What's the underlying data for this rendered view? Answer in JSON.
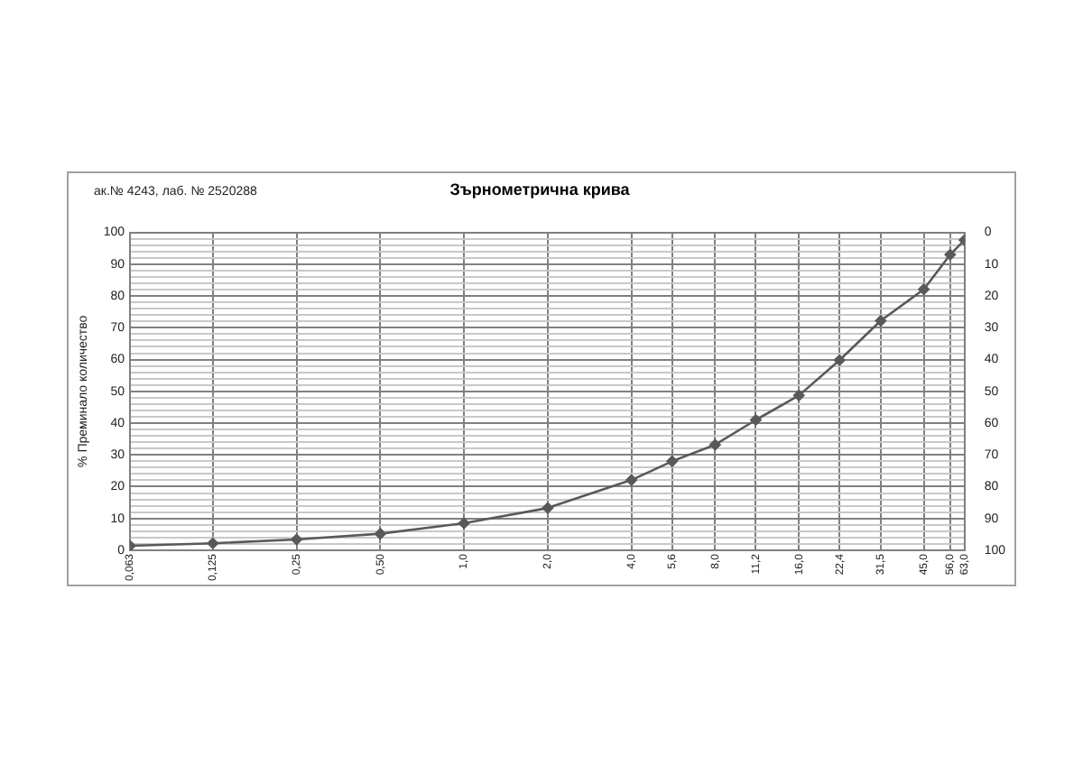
{
  "chart_data": {
    "type": "line",
    "title": "Зърнометрична крива",
    "ylabel": "% Преминало количество",
    "annotations": [
      "ак.№ 4243, лаб. № 2520288"
    ],
    "x": [
      0.063,
      0.125,
      0.25,
      0.5,
      1.0,
      2.0,
      4.0,
      5.6,
      8.0,
      11.2,
      16.0,
      22.4,
      31.5,
      45.0,
      56.0,
      63.0
    ],
    "series": [
      {
        "color": "#595959",
        "values": [
          1.4,
          2.2,
          3.4,
          5.2,
          8.5,
          13.3,
          22.1,
          28,
          33.2,
          41,
          48.7,
          59.8,
          72.2,
          82.1,
          93,
          97.6
        ]
      }
    ],
    "log": "x",
    "xlim": [
      0.063,
      63
    ],
    "xticks": [
      {
        "value": 0.063,
        "label": "0,063"
      },
      {
        "value": 0.125,
        "label": "0,125"
      },
      {
        "value": 0.25,
        "label": "0,25"
      },
      {
        "value": 0.5,
        "label": "0,50"
      },
      {
        "value": 1,
        "label": "1,0"
      },
      {
        "value": 2,
        "label": "2,0"
      },
      {
        "value": 4,
        "label": "4,0"
      },
      {
        "value": 5.6,
        "label": "5,6"
      },
      {
        "value": 8,
        "label": "8,0"
      },
      {
        "value": 11.2,
        "label": "11,2"
      },
      {
        "value": 16,
        "label": "16,0"
      },
      {
        "value": 22.4,
        "label": "22,4"
      },
      {
        "value": 31.5,
        "label": "31,5"
      },
      {
        "value": 45,
        "label": "45,0"
      },
      {
        "value": 56,
        "label": "56,0"
      },
      {
        "value": 63,
        "label": "63,0"
      }
    ],
    "ylim": [
      0,
      100
    ],
    "yticks": [
      0,
      {
        "value": 2,
        "label": null
      },
      {
        "value": 4,
        "label": null
      },
      {
        "value": 6,
        "label": null
      },
      {
        "value": 8,
        "label": null
      },
      10,
      {
        "value": 12,
        "label": null
      },
      {
        "value": 14,
        "label": null
      },
      {
        "value": 16,
        "label": null
      },
      {
        "value": 18,
        "label": null
      },
      20,
      {
        "value": 22,
        "label": null
      },
      {
        "value": 24,
        "label": null
      },
      {
        "value": 26,
        "label": null
      },
      {
        "value": 28,
        "label": null
      },
      30,
      {
        "value": 32,
        "label": null
      },
      {
        "value": 34,
        "label": null
      },
      {
        "value": 36,
        "label": null
      },
      {
        "value": 38,
        "label": null
      },
      40,
      {
        "value": 42,
        "label": null
      },
      {
        "value": 44,
        "label": null
      },
      {
        "value": 46,
        "label": null
      },
      {
        "value": 48,
        "label": null
      },
      50,
      {
        "value": 52,
        "label": null
      },
      {
        "value": 54,
        "label": null
      },
      {
        "value": 56,
        "label": null
      },
      {
        "value": 58,
        "label": null
      },
      60,
      {
        "value": 62,
        "label": null
      },
      {
        "value": 64,
        "label": null
      },
      {
        "value": 66,
        "label": null
      },
      {
        "value": 68,
        "label": null
      },
      70,
      {
        "value": 72,
        "label": null
      },
      {
        "value": 74,
        "label": null
      },
      {
        "value": 76,
        "label": null
      },
      {
        "value": 78,
        "label": null
      },
      80,
      {
        "value": 82,
        "label": null
      },
      {
        "value": 84,
        "label": null
      },
      {
        "value": 86,
        "label": null
      },
      {
        "value": 88,
        "label": null
      },
      90,
      {
        "value": 92,
        "label": null
      },
      {
        "value": 94,
        "label": null
      },
      {
        "value": 96,
        "label": null
      },
      {
        "value": 98,
        "label": null
      },
      100
    ],
    "y2lim": [
      100,
      0
    ],
    "y2ticks": [
      0,
      10,
      20,
      30,
      40,
      50,
      60,
      70,
      80,
      90,
      100
    ],
    "grid": true,
    "marker": "diamond",
    "line_style": "solid"
  }
}
